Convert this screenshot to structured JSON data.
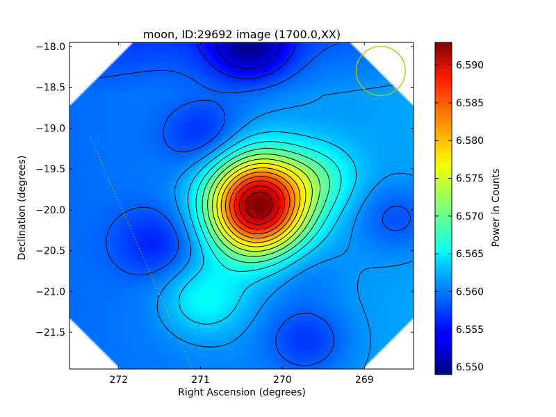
{
  "chart_data": {
    "type": "heatmap",
    "title": "moon, ID:29692 image (1700.0,XX)",
    "xlabel": "Right Ascension (degrees)",
    "ylabel": "Declination (degrees)",
    "xlim": [
      272.6,
      268.4
    ],
    "ylim": [
      -21.95,
      -17.95
    ],
    "x_ticks": [
      {
        "value": 272,
        "label": "272"
      },
      {
        "value": 271,
        "label": "271"
      },
      {
        "value": 270,
        "label": "270"
      },
      {
        "value": 269,
        "label": "269"
      }
    ],
    "y_ticks": [
      {
        "value": -18.0,
        "label": "−18.0"
      },
      {
        "value": -18.5,
        "label": "−18.5"
      },
      {
        "value": -19.0,
        "label": "−19.0"
      },
      {
        "value": -19.5,
        "label": "−19.5"
      },
      {
        "value": -20.0,
        "label": "−20.0"
      },
      {
        "value": -20.5,
        "label": "−20.5"
      },
      {
        "value": -21.0,
        "label": "−21.0"
      },
      {
        "value": -21.5,
        "label": "−21.5"
      }
    ],
    "colorbar": {
      "label": "Power in Counts",
      "range": [
        6.549,
        6.593
      ],
      "ticks": [
        {
          "value": 6.55,
          "label": "6.550"
        },
        {
          "value": 6.555,
          "label": "6.555"
        },
        {
          "value": 6.56,
          "label": "6.560"
        },
        {
          "value": 6.565,
          "label": "6.565"
        },
        {
          "value": 6.57,
          "label": "6.570"
        },
        {
          "value": 6.575,
          "label": "6.575"
        },
        {
          "value": 6.58,
          "label": "6.580"
        },
        {
          "value": 6.585,
          "label": "6.585"
        },
        {
          "value": 6.59,
          "label": "6.590"
        }
      ],
      "colormap": "jet"
    },
    "field": {
      "background": 6.5595,
      "peak": {
        "ra": 270.3,
        "dec": -19.95,
        "value": 6.592
      },
      "features": [
        {
          "kind": "max",
          "ra": 270.3,
          "dec": -19.95,
          "value": 6.592
        },
        {
          "kind": "max",
          "ra": 270.95,
          "dec": -21.1,
          "value": 6.565
        },
        {
          "kind": "max",
          "ra": 269.55,
          "dec": -19.6,
          "value": 6.5645
        },
        {
          "kind": "min",
          "ra": 271.55,
          "dec": -20.4,
          "value": 6.5555
        },
        {
          "kind": "min",
          "ra": 270.95,
          "dec": -19.08,
          "value": 6.5555
        },
        {
          "kind": "min",
          "ra": 269.8,
          "dec": -20.7,
          "value": 6.5575
        },
        {
          "kind": "min",
          "ra": 268.6,
          "dec": -20.1,
          "value": 6.556
        },
        {
          "kind": "min",
          "ra": 269.7,
          "dec": -21.6,
          "value": 6.5555
        },
        {
          "kind": "min",
          "ra": 270.4,
          "dec": -18.0,
          "value": 6.551
        }
      ]
    },
    "overlays": {
      "beam_circle": {
        "ra": 268.8,
        "dec": -18.3,
        "radius_deg": 0.3,
        "color": "#bfbf00"
      },
      "dotted_line": {
        "from": {
          "ra": 272.35,
          "dec": -19.1
        },
        "to": {
          "ra": 271.1,
          "dec": -21.95
        },
        "color": "#bfbf00"
      }
    },
    "grid": false,
    "legend": "none"
  }
}
